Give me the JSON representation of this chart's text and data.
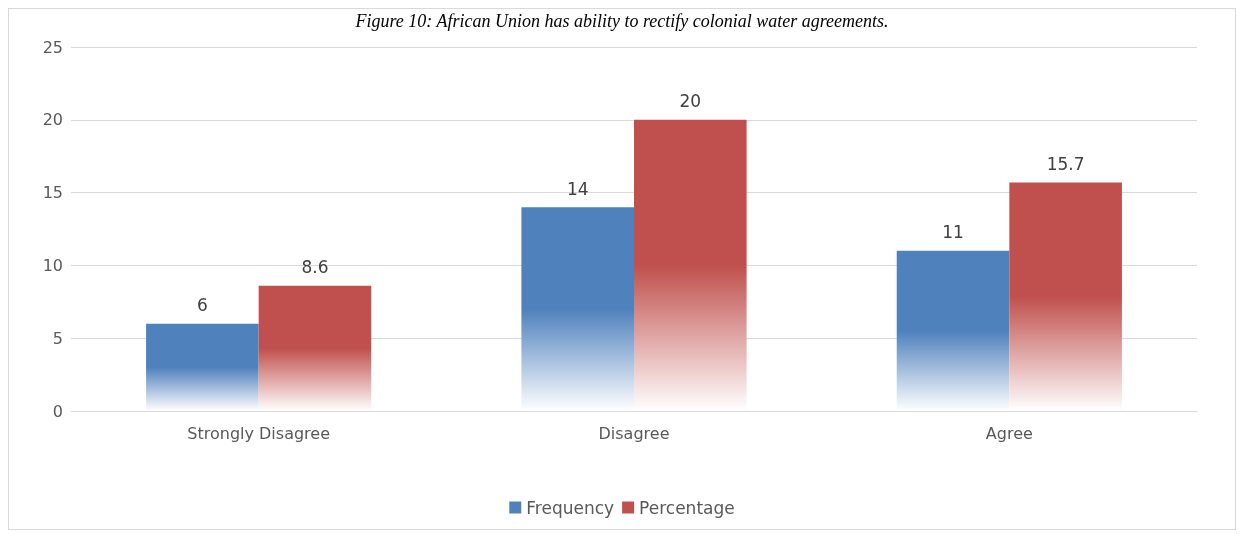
{
  "chart_data": {
    "type": "bar",
    "title": "Figure 10: African Union has ability to rectify colonial water agreements.",
    "categories": [
      "Strongly Disagree",
      "Disagree",
      "Agree"
    ],
    "series": [
      {
        "name": "Frequency",
        "color": "#4f81bd",
        "values": [
          6,
          14,
          11
        ]
      },
      {
        "name": "Percentage",
        "color": "#c0504d",
        "values": [
          8.6,
          20,
          15.7
        ]
      }
    ],
    "ylim": [
      0,
      25
    ],
    "yticks": [
      0,
      5,
      10,
      15,
      20,
      25
    ],
    "grid": "y",
    "legend": "bottom",
    "data_labels": true
  }
}
